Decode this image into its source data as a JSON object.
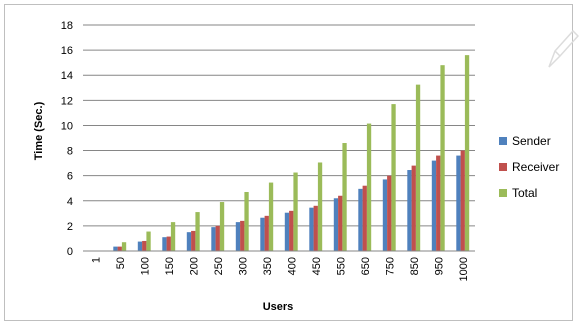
{
  "chart_data": {
    "type": "bar",
    "xlabel": "Users",
    "ylabel": "Time (Sec.)",
    "ylim": [
      0,
      18
    ],
    "yticks": [
      0,
      2,
      4,
      6,
      8,
      10,
      12,
      14,
      16,
      18
    ],
    "grid": true,
    "legend_position": "right",
    "categories": [
      "1",
      "50",
      "100",
      "150",
      "200",
      "250",
      "300",
      "350",
      "400",
      "450",
      "550",
      "650",
      "750",
      "850",
      "950",
      "1000"
    ],
    "series": [
      {
        "name": "Sender",
        "color": "#4f81bd",
        "values": [
          0.02,
          0.35,
          0.75,
          1.1,
          1.5,
          1.9,
          2.3,
          2.65,
          3.05,
          3.45,
          4.2,
          4.95,
          5.7,
          6.45,
          7.2,
          7.6
        ]
      },
      {
        "name": "Receiver",
        "color": "#c0504d",
        "values": [
          0.02,
          0.35,
          0.8,
          1.15,
          1.6,
          2.0,
          2.4,
          2.8,
          3.2,
          3.6,
          4.4,
          5.2,
          6.0,
          6.8,
          7.6,
          8.0
        ]
      },
      {
        "name": "Total",
        "color": "#9bbb59",
        "values": [
          0.04,
          0.7,
          1.55,
          2.3,
          3.1,
          3.9,
          4.7,
          5.45,
          6.25,
          7.05,
          8.6,
          10.15,
          11.7,
          13.25,
          14.8,
          15.6
        ]
      }
    ]
  }
}
